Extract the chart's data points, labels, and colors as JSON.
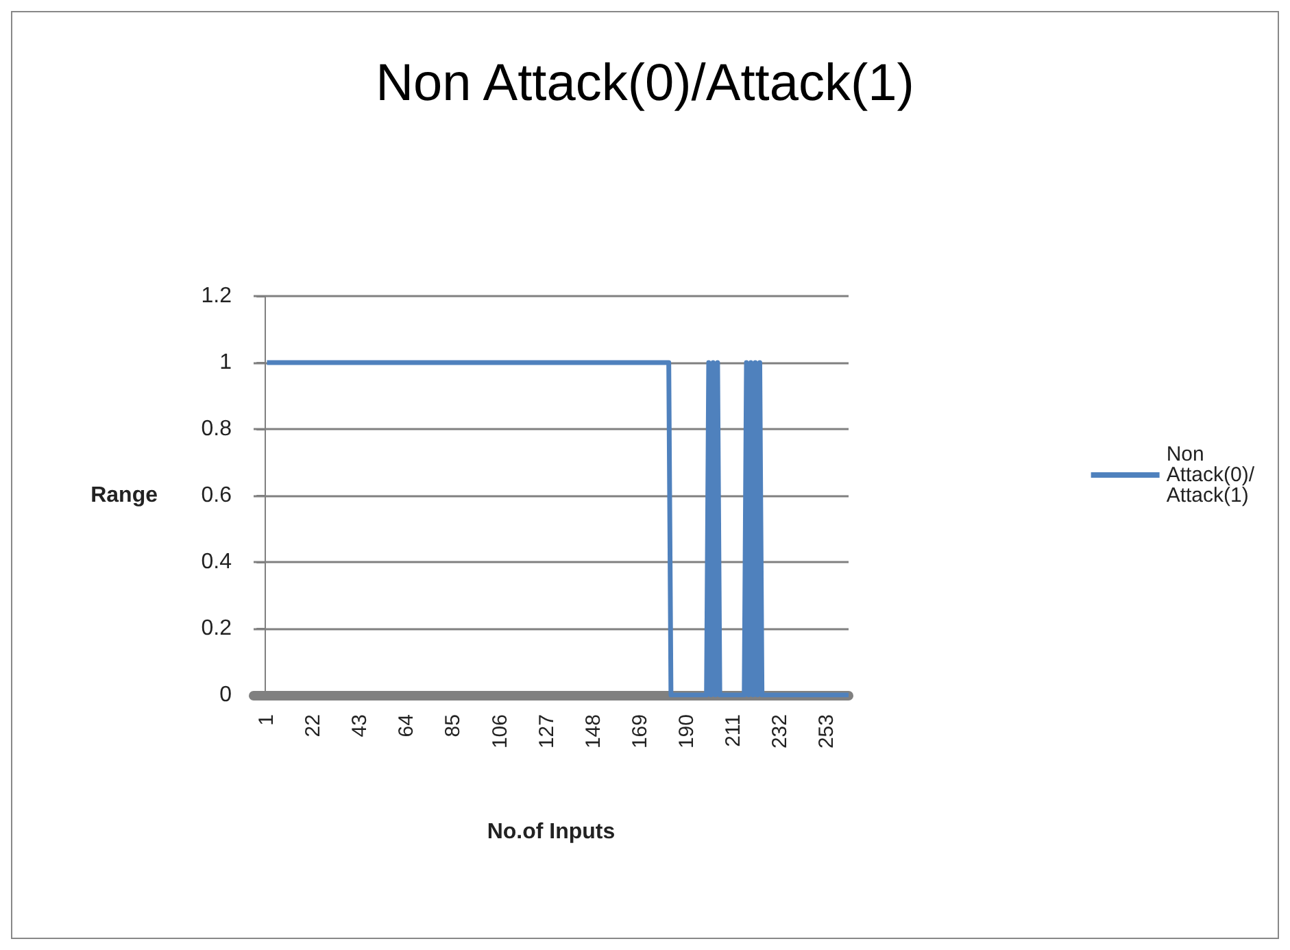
{
  "chart_data": {
    "type": "line",
    "title": "Non Attack(0)/Attack(1)",
    "xlabel": "No.of Inputs",
    "ylabel": "Range",
    "x": [
      1,
      182,
      183,
      199,
      200,
      201,
      202,
      203,
      204,
      205,
      216,
      217,
      218,
      219,
      220,
      221,
      222,
      223,
      224,
      263
    ],
    "series": [
      {
        "name": "Non Attack(0)/Attack(1)",
        "color": "#4f81bd",
        "values": [
          1,
          1,
          0,
          0,
          1,
          0,
          1,
          0,
          1,
          0,
          0,
          1,
          0,
          1,
          0,
          1,
          0,
          1,
          0,
          0
        ]
      }
    ],
    "xlim": [
      -5,
      263
    ],
    "xticks": [
      1,
      22,
      43,
      64,
      85,
      106,
      127,
      148,
      169,
      190,
      211,
      232,
      253
    ],
    "ylim": [
      0,
      1.2
    ],
    "yticks": [
      0,
      0.2,
      0.4,
      0.6,
      0.8,
      1,
      1.2
    ],
    "grid": "y",
    "legend": "right",
    "marker": "none",
    "line_style": "solid"
  }
}
